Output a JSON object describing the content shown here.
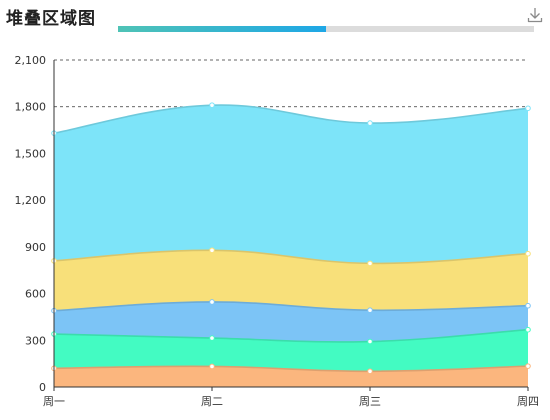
{
  "title": "堆叠区域图",
  "progress": {
    "value": 0.5
  },
  "icons": {
    "download": "download-icon"
  },
  "colors": {
    "progress_start": "#4fc3b6",
    "progress_end": "#1ea7e6",
    "progress_track": "#dcdcdc"
  },
  "chart_data": {
    "type": "area",
    "stacked": true,
    "title": "堆叠区域图",
    "categories": [
      "周一",
      "周二",
      "周三",
      "周四"
    ],
    "ylim": [
      0,
      2100
    ],
    "yticks": [
      0,
      300,
      600,
      900,
      1200,
      1500,
      1800,
      2100
    ],
    "ytick_labels": [
      "0",
      "300",
      "600",
      "900",
      "1,200",
      "1,500",
      "1,800",
      "2,100"
    ],
    "grid": true,
    "legend": "none",
    "series": [
      {
        "values": [
          120,
          132,
          101,
          134
        ],
        "color": "#fbb67e"
      },
      {
        "values": [
          220,
          182,
          191,
          234
        ],
        "color": "#43fbc2"
      },
      {
        "values": [
          150,
          232,
          201,
          154
        ],
        "color": "#7cc4f6"
      },
      {
        "values": [
          320,
          332,
          301,
          334
        ],
        "color": "#f8e07a"
      },
      {
        "values": [
          820,
          932,
          901,
          934
        ],
        "color": "#7de4f9"
      }
    ]
  }
}
